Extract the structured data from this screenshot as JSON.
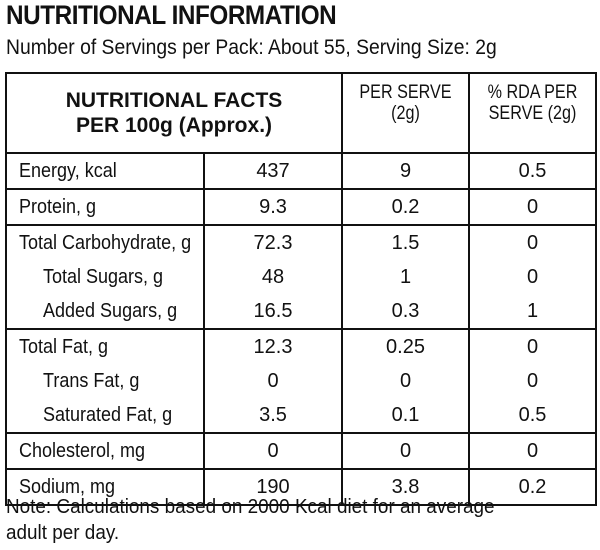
{
  "title": "NUTRITIONAL INFORMATION",
  "subtitle": "Number of Servings per Pack: About 55, Serving Size: 2g",
  "table": {
    "header": {
      "col1_line1": "NUTRITIONAL FACTS",
      "col1_line2": "PER 100g (Approx.)",
      "col2_line1": "PER SERVE",
      "col2_line2": "(2g)",
      "col3_line1": "% RDA PER",
      "col3_line2": "SERVE (2g)"
    },
    "groups": [
      {
        "rows": [
          {
            "label": "Energy, kcal",
            "per100": "437",
            "serve": "9",
            "rda": "0.5"
          }
        ]
      },
      {
        "rows": [
          {
            "label": "Protein, g",
            "per100": "9.3",
            "serve": "0.2",
            "rda": "0"
          }
        ]
      },
      {
        "rows": [
          {
            "label": "Total Carbohydrate, g",
            "per100": "72.3",
            "serve": "1.5",
            "rda": "0"
          },
          {
            "label": "Total Sugars, g",
            "per100": "48",
            "serve": "1",
            "rda": "0"
          },
          {
            "label": "Added Sugars, g",
            "per100": "16.5",
            "serve": "0.3",
            "rda": "1"
          }
        ]
      },
      {
        "rows": [
          {
            "label": "Total Fat, g",
            "per100": "12.3",
            "serve": "0.25",
            "rda": "0"
          },
          {
            "label": "Trans Fat, g",
            "per100": "0",
            "serve": "0",
            "rda": "0"
          },
          {
            "label": "Saturated Fat, g",
            "per100": "3.5",
            "serve": "0.1",
            "rda": "0.5"
          }
        ]
      },
      {
        "rows": [
          {
            "label": "Cholesterol, mg",
            "per100": "0",
            "serve": "0",
            "rda": "0"
          }
        ]
      },
      {
        "rows": [
          {
            "label": "Sodium, mg",
            "per100": "190",
            "serve": "3.8",
            "rda": "0.2"
          }
        ]
      }
    ]
  },
  "note_line1": "Note: Calculations based on 2000 Kcal diet for an average",
  "note_line2": "adult per day."
}
